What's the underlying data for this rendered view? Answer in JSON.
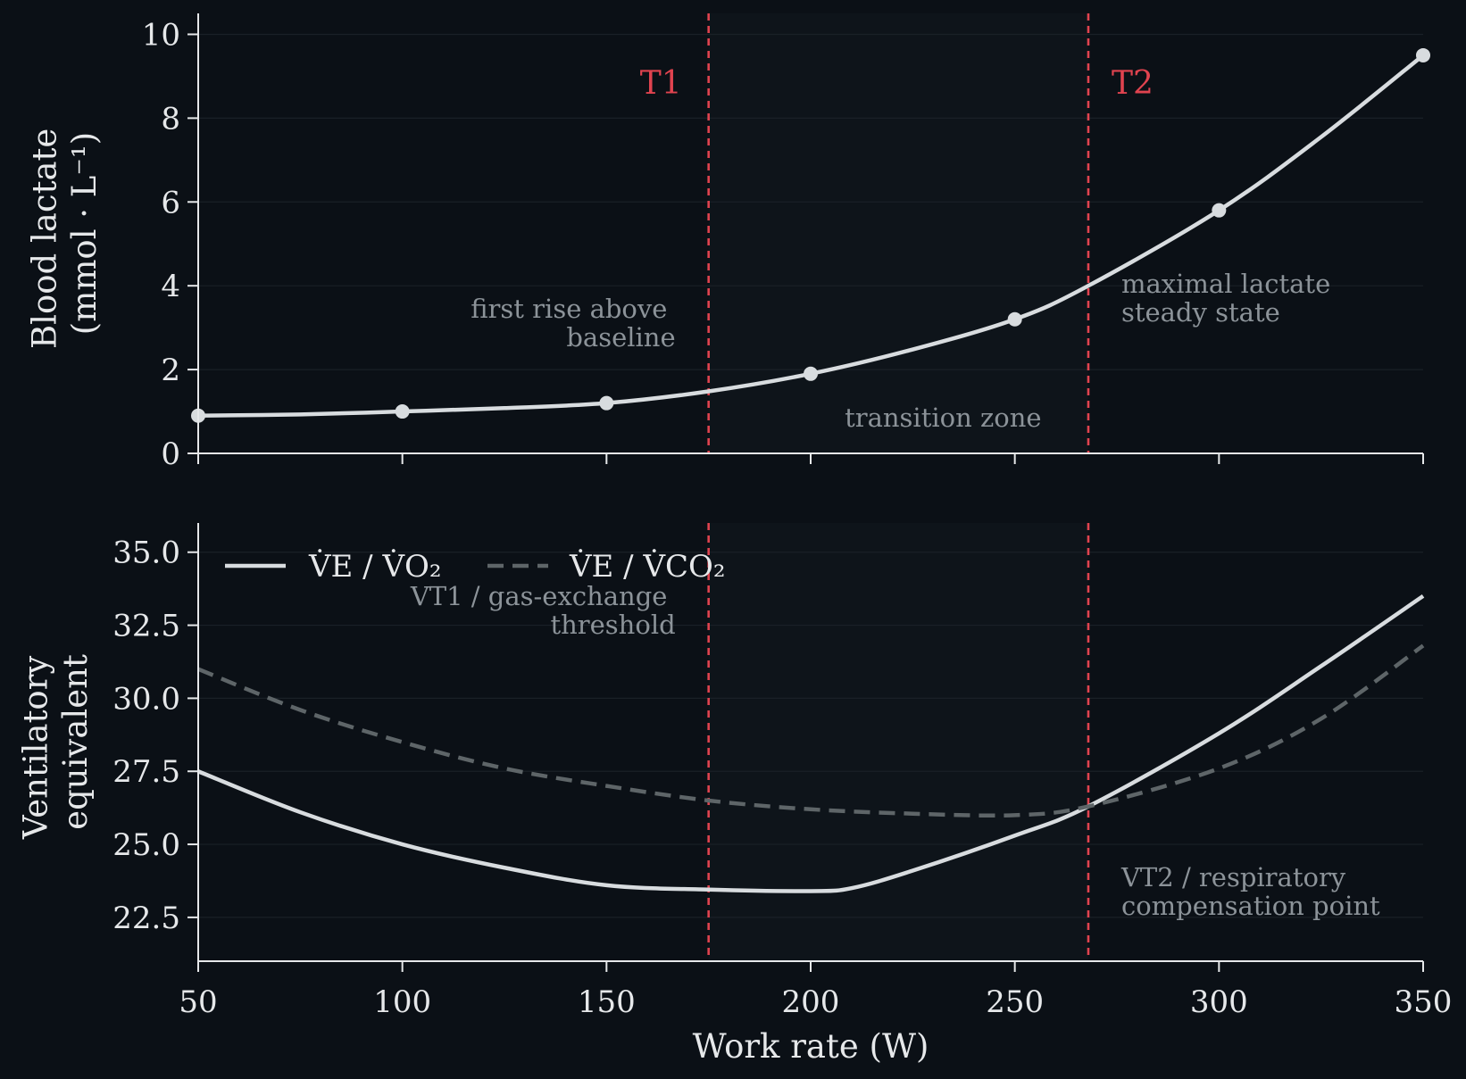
{
  "colors": {
    "background": "#0b1016",
    "zone": "#0e141a",
    "axis": "#e6e8ea",
    "grid": "#1a2027",
    "curve_main": "#d8dcdf",
    "curve_secondary": "#5e6568",
    "threshold": "#e0434f",
    "annotation": "#8c9399"
  },
  "chart_data": [
    {
      "id": "lactate",
      "type": "line",
      "xlim": [
        50,
        350
      ],
      "ylim": [
        0,
        10.5
      ],
      "yticks": [
        0,
        2,
        4,
        6,
        8,
        10
      ],
      "ytick_labels": [
        "0",
        "2",
        "4",
        "6",
        "8",
        "10"
      ],
      "ylabel_lines": [
        "Blood lactate",
        "(mmol · L⁻¹)"
      ],
      "grid": true,
      "points": {
        "x": [
          50,
          100,
          150,
          200,
          250,
          300,
          350
        ],
        "y": [
          0.9,
          1.0,
          1.2,
          1.9,
          3.2,
          5.8,
          9.5
        ]
      },
      "curve": {
        "x": [
          50,
          75,
          100,
          125,
          150,
          175,
          200,
          225,
          250,
          268,
          300,
          325,
          350
        ],
        "y": [
          0.9,
          0.93,
          1.0,
          1.08,
          1.2,
          1.48,
          1.9,
          2.48,
          3.2,
          4.0,
          5.8,
          7.55,
          9.5
        ]
      },
      "thresholds": [
        {
          "x": 175,
          "label": "T1"
        },
        {
          "x": 268,
          "label": "T2"
        }
      ],
      "zone": {
        "x0": 175,
        "x1": 268
      },
      "annotations": {
        "t1": [
          "first rise above",
          "baseline"
        ],
        "zone": [
          "transition zone"
        ],
        "t2": [
          "maximal lactate",
          "steady state"
        ]
      }
    },
    {
      "id": "ventilatory",
      "type": "line",
      "xlim": [
        50,
        350
      ],
      "ylim": [
        21,
        36
      ],
      "yticks": [
        22.5,
        25.0,
        27.5,
        30.0,
        32.5,
        35.0
      ],
      "ytick_labels": [
        "22.5",
        "25.0",
        "27.5",
        "30.0",
        "32.5",
        "35.0"
      ],
      "ylabel_lines": [
        "Ventilatory",
        "equivalent"
      ],
      "xticks": [
        50,
        100,
        150,
        200,
        250,
        300,
        350
      ],
      "xtick_labels": [
        "50",
        "100",
        "150",
        "200",
        "250",
        "300",
        "350"
      ],
      "xlabel": "Work rate (W)",
      "grid": true,
      "legend_position": "upper-left",
      "series": [
        {
          "name": "V̇E / V̇O₂",
          "style": "solid",
          "x": [
            50,
            75,
            100,
            125,
            150,
            175,
            200,
            210,
            225,
            250,
            268,
            300,
            325,
            350
          ],
          "y": [
            27.5,
            26.1,
            25.0,
            24.2,
            23.6,
            23.45,
            23.4,
            23.5,
            24.1,
            25.3,
            26.3,
            28.8,
            31.1,
            33.5
          ]
        },
        {
          "name": "V̇E / V̇CO₂",
          "style": "dashed",
          "x": [
            50,
            75,
            100,
            125,
            150,
            175,
            200,
            225,
            250,
            268,
            300,
            325,
            350
          ],
          "y": [
            31.0,
            29.6,
            28.5,
            27.6,
            27.0,
            26.5,
            26.2,
            26.05,
            26.0,
            26.3,
            27.6,
            29.3,
            31.8
          ]
        }
      ],
      "thresholds": [
        {
          "x": 175
        },
        {
          "x": 268
        }
      ],
      "zone": {
        "x0": 175,
        "x1": 268
      },
      "annotations": {
        "vt1": [
          "VT1 / gas-exchange",
          "threshold"
        ],
        "vt2": [
          "VT2 / respiratory",
          "compensation point"
        ]
      }
    }
  ]
}
